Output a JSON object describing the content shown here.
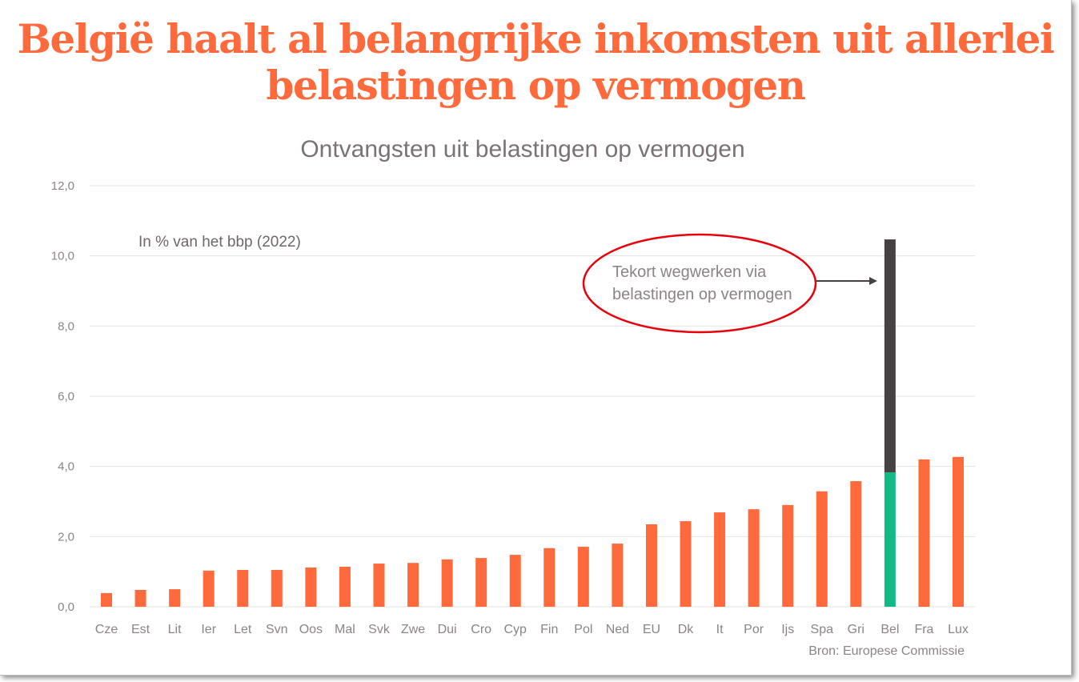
{
  "title_line1": "België haalt al belangrijke inkomsten uit allerlei",
  "title_line2": "belastingen op vermogen",
  "chart_data": {
    "type": "bar",
    "title": "Ontvangsten uit belastingen op vermogen",
    "note": "In % van het bbp (2022)",
    "xlabel": "",
    "ylabel": "",
    "ylim": [
      0,
      12
    ],
    "yticks": [
      "0,0",
      "2,0",
      "4,0",
      "6,0",
      "8,0",
      "10,0",
      "12,0"
    ],
    "ytick_values": [
      0,
      2,
      4,
      6,
      8,
      10,
      12
    ],
    "grid": true,
    "categories": [
      "Cze",
      "Est",
      "Lit",
      "Ier",
      "Let",
      "Svn",
      "Oos",
      "Mal",
      "Svk",
      "Zwe",
      "Dui",
      "Cro",
      "Cyp",
      "Fin",
      "Pol",
      "Ned",
      "EU",
      "Dk",
      "It",
      "Por",
      "Ijs",
      "Spa",
      "Gri",
      "Bel",
      "Fra",
      "Lux"
    ],
    "series": [
      {
        "name": "Ontvangsten",
        "color": "#ff6a3d",
        "values": [
          0.39,
          0.48,
          0.5,
          1.03,
          1.05,
          1.05,
          1.12,
          1.14,
          1.23,
          1.25,
          1.35,
          1.39,
          1.48,
          1.67,
          1.71,
          1.8,
          2.35,
          2.44,
          2.69,
          2.78,
          2.9,
          3.29,
          3.58,
          3.83,
          4.2,
          4.27
        ]
      },
      {
        "name": "Tekort wegwerken via belastingen op vermogen",
        "color": "#464142",
        "stack_on": "Bel",
        "value": 6.64
      }
    ],
    "highlight": {
      "category": "Bel",
      "color": "#12b886"
    },
    "annotation": {
      "line1": "Tekort wegwerken via",
      "line2": "belastingen op vermogen",
      "ellipse_color": "#e8000b"
    },
    "source": "Bron: Europese Commissie"
  }
}
